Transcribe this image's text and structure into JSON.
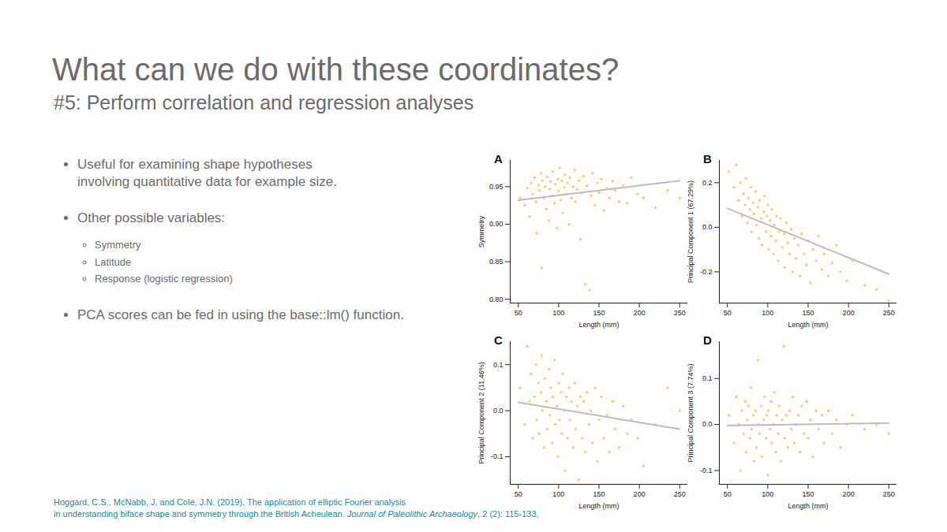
{
  "slide": {
    "title": "What can we do with these coordinates?",
    "subtitle": "#5: Perform correlation and regression analyses",
    "bullets": [
      {
        "text": "Useful for examining shape hypotheses involving quantitative data for example size."
      },
      {
        "text": "Other possible variables:",
        "items": [
          "Symmetry",
          "Latitude",
          "Response (logistic regression)"
        ]
      },
      {
        "text": "PCA scores can be fed in using the base::lm() function."
      }
    ],
    "citation": {
      "lines": [
        "Hoggard, C.S., McNabb, J. and Cole, J.N. (2019). The application of elliptic Fourier analysis",
        "in understanding biface shape and symmetry through the British Acheulean. "
      ],
      "journal": "Journal of Paleolithic Archaeology",
      "details": ", 2 (2): 115-133,"
    }
  },
  "chart_data": [
    {
      "type": "scatter",
      "panel": "A",
      "x_label": "Length (mm)",
      "y_label": "Symmetry",
      "xlim": [
        40,
        260
      ],
      "xticks": [
        50,
        100,
        150,
        200,
        250
      ],
      "ylim": [
        0.795,
        0.985
      ],
      "yticks": [
        {
          "value": 0.8,
          "label": "0.80"
        },
        {
          "value": 0.85,
          "label": "0.85"
        },
        {
          "value": 0.9,
          "label": "0.90"
        },
        {
          "value": 0.95,
          "label": "0.95"
        }
      ],
      "series": [
        {
          "type": "scatter",
          "color": "#f5b335",
          "x": [
            52,
            58,
            61,
            64,
            66,
            68,
            70,
            72,
            73,
            75,
            76,
            78,
            79,
            80,
            82,
            83,
            85,
            86,
            88,
            89,
            90,
            92,
            93,
            95,
            96,
            98,
            99,
            100,
            101,
            103,
            104,
            105,
            107,
            108,
            110,
            111,
            113,
            114,
            116,
            118,
            120,
            121,
            123,
            125,
            127,
            129,
            131,
            133,
            135,
            138,
            140,
            142,
            145,
            148,
            150,
            153,
            156,
            160,
            163,
            167,
            170,
            175,
            180,
            185,
            190,
            198,
            205,
            220,
            235,
            250
          ],
          "values": [
            0.935,
            0.925,
            0.948,
            0.91,
            0.955,
            0.94,
            0.962,
            0.93,
            0.888,
            0.952,
            0.945,
            0.968,
            0.842,
            0.958,
            0.935,
            0.95,
            0.92,
            0.963,
            0.905,
            0.947,
            0.957,
            0.938,
            0.97,
            0.928,
            0.953,
            0.895,
            0.96,
            0.944,
            0.975,
            0.932,
            0.958,
            0.915,
            0.949,
            0.966,
            0.94,
            0.955,
            0.9,
            0.962,
            0.935,
            0.95,
            0.972,
            0.93,
            0.946,
            0.958,
            0.88,
            0.942,
            0.964,
            0.82,
            0.951,
            0.812,
            0.938,
            0.968,
            0.925,
            0.955,
            0.942,
            0.96,
            0.918,
            0.948,
            0.935,
            0.957,
            0.945,
            0.93,
            0.952,
            0.928,
            0.962,
            0.94,
            0.935,
            0.922,
            0.945,
            0.935
          ]
        },
        {
          "type": "line",
          "color": "#bdbdbd",
          "x": [
            50,
            250
          ],
          "values": [
            0.932,
            0.958
          ]
        }
      ]
    },
    {
      "type": "scatter",
      "panel": "B",
      "x_label": "Length (mm)",
      "y_label": "Principal Component 1 (67.29%)",
      "xlim": [
        40,
        260
      ],
      "xticks": [
        50,
        100,
        150,
        200,
        250
      ],
      "ylim": [
        -0.34,
        0.3
      ],
      "yticks": [
        -0.2,
        {
          "value": 0,
          "label": "0.0"
        },
        0.2
      ],
      "series": [
        {
          "type": "scatter",
          "color": "#f5b335",
          "x": [
            52,
            58,
            61,
            64,
            66,
            68,
            70,
            72,
            73,
            75,
            76,
            78,
            79,
            80,
            82,
            83,
            85,
            86,
            88,
            89,
            90,
            92,
            93,
            95,
            96,
            98,
            99,
            100,
            101,
            103,
            104,
            105,
            107,
            108,
            110,
            111,
            113,
            114,
            116,
            118,
            120,
            121,
            123,
            125,
            127,
            129,
            131,
            133,
            135,
            138,
            140,
            142,
            145,
            148,
            150,
            153,
            156,
            160,
            163,
            167,
            170,
            175,
            180,
            185,
            190,
            198,
            205,
            220,
            235,
            250
          ],
          "values": [
            0.25,
            0.18,
            0.28,
            0.12,
            0.2,
            0.05,
            0.15,
            0.1,
            0.22,
            0.02,
            0.13,
            0.08,
            0.18,
            -0.02,
            0.11,
            0.06,
            0.16,
            0.01,
            0.09,
            -0.05,
            0.12,
            0.04,
            -0.08,
            0.07,
            0.14,
            -0.02,
            0.05,
            0.1,
            -0.1,
            0.03,
            -0.04,
            0.08,
            -0.12,
            0.01,
            -0.06,
            0.05,
            -0.15,
            -0.02,
            0.04,
            -0.09,
            -0.03,
            -0.18,
            0.02,
            -0.07,
            -0.12,
            -0.01,
            -0.2,
            -0.05,
            -0.14,
            -0.08,
            -0.22,
            -0.03,
            -0.12,
            -0.17,
            -0.06,
            -0.25,
            -0.1,
            -0.15,
            -0.04,
            -0.19,
            -0.12,
            -0.22,
            -0.16,
            -0.08,
            -0.2,
            -0.24,
            -0.15,
            -0.26,
            -0.28,
            -0.33
          ]
        },
        {
          "type": "line",
          "color": "#bdbdbd",
          "x": [
            50,
            250
          ],
          "values": [
            0.085,
            -0.21
          ]
        }
      ]
    },
    {
      "type": "scatter",
      "panel": "C",
      "x_label": "Length (mm)",
      "y_label": "Principal Component 2 (11.46%)",
      "xlim": [
        40,
        260
      ],
      "xticks": [
        50,
        100,
        150,
        200,
        250
      ],
      "ylim": [
        -0.16,
        0.15
      ],
      "yticks": [
        -0.1,
        {
          "value": 0,
          "label": "0.0"
        },
        0.1
      ],
      "series": [
        {
          "type": "scatter",
          "color": "#f5b335",
          "x": [
            52,
            58,
            61,
            64,
            66,
            68,
            70,
            72,
            73,
            75,
            76,
            78,
            79,
            80,
            82,
            83,
            85,
            86,
            88,
            89,
            90,
            92,
            93,
            95,
            96,
            98,
            99,
            100,
            101,
            103,
            104,
            105,
            107,
            108,
            110,
            111,
            113,
            114,
            116,
            118,
            120,
            121,
            123,
            125,
            127,
            129,
            131,
            133,
            135,
            138,
            140,
            142,
            145,
            148,
            150,
            153,
            156,
            160,
            163,
            167,
            170,
            175,
            180,
            185,
            190,
            198,
            205,
            220,
            235,
            250
          ],
          "values": [
            0.05,
            -0.03,
            0.14,
            0.02,
            0.08,
            -0.06,
            0.03,
            0.1,
            -0.02,
            0.06,
            -0.05,
            0.04,
            0.12,
            0.0,
            -0.08,
            0.07,
            0.02,
            -0.04,
            0.09,
            -0.01,
            0.05,
            -0.07,
            0.03,
            0.11,
            -0.03,
            0.01,
            -0.1,
            0.06,
            -0.02,
            0.04,
            -0.05,
            0.08,
            0.0,
            -0.13,
            0.03,
            -0.06,
            0.05,
            -0.02,
            0.02,
            -0.08,
            0.06,
            -0.04,
            0.01,
            -0.15,
            0.03,
            -0.06,
            0.02,
            -0.09,
            0.04,
            -0.03,
            0.0,
            -0.07,
            0.05,
            -0.11,
            -0.02,
            0.03,
            -0.06,
            -0.01,
            -0.09,
            0.02,
            -0.04,
            -0.08,
            0.01,
            -0.05,
            -0.02,
            -0.06,
            -0.12,
            -0.03,
            0.05,
            0.0
          ]
        },
        {
          "type": "line",
          "color": "#bdbdbd",
          "x": [
            50,
            250
          ],
          "values": [
            0.018,
            -0.04
          ]
        }
      ]
    },
    {
      "type": "scatter",
      "panel": "D",
      "x_label": "Length (mm)",
      "y_label": "Principal Component 3 (7.74%)",
      "xlim": [
        40,
        260
      ],
      "xticks": [
        50,
        100,
        150,
        200,
        250
      ],
      "ylim": [
        -0.13,
        0.18
      ],
      "yticks": [
        -0.1,
        {
          "value": 0,
          "label": "0.0"
        },
        0.1
      ],
      "series": [
        {
          "type": "scatter",
          "color": "#f5b335",
          "x": [
            52,
            58,
            61,
            64,
            66,
            68,
            70,
            72,
            73,
            75,
            76,
            78,
            79,
            80,
            82,
            83,
            85,
            86,
            88,
            89,
            90,
            92,
            93,
            95,
            96,
            98,
            99,
            100,
            101,
            103,
            104,
            105,
            107,
            108,
            110,
            111,
            113,
            114,
            116,
            118,
            120,
            121,
            123,
            125,
            127,
            129,
            131,
            133,
            135,
            138,
            140,
            142,
            145,
            148,
            150,
            153,
            156,
            160,
            163,
            167,
            170,
            175,
            180,
            185,
            190,
            198,
            205,
            220,
            235,
            250
          ],
          "values": [
            0.02,
            -0.04,
            0.06,
            0.0,
            -0.1,
            0.03,
            -0.02,
            0.05,
            -0.06,
            0.01,
            0.04,
            -0.03,
            0.08,
            -0.01,
            0.02,
            -0.08,
            0.03,
            -0.05,
            0.14,
            0.0,
            -0.02,
            0.04,
            -0.07,
            0.01,
            0.06,
            -0.03,
            0.02,
            -0.11,
            0.03,
            -0.01,
            0.05,
            -0.04,
            0.0,
            0.07,
            -0.06,
            0.02,
            -0.02,
            0.04,
            -0.08,
            0.01,
            0.17,
            -0.03,
            0.02,
            -0.05,
            0.03,
            -0.01,
            0.06,
            -0.04,
            0.0,
            0.02,
            -0.06,
            0.04,
            -0.02,
            0.05,
            -0.03,
            0.01,
            -0.07,
            0.03,
            -0.01,
            0.02,
            -0.04,
            0.03,
            -0.02,
            0.01,
            -0.05,
            0.0,
            0.02,
            -0.01,
            0.0,
            -0.02
          ]
        },
        {
          "type": "line",
          "color": "#bdbdbd",
          "x": [
            50,
            250
          ],
          "values": [
            -0.002,
            0.003
          ]
        }
      ]
    }
  ]
}
